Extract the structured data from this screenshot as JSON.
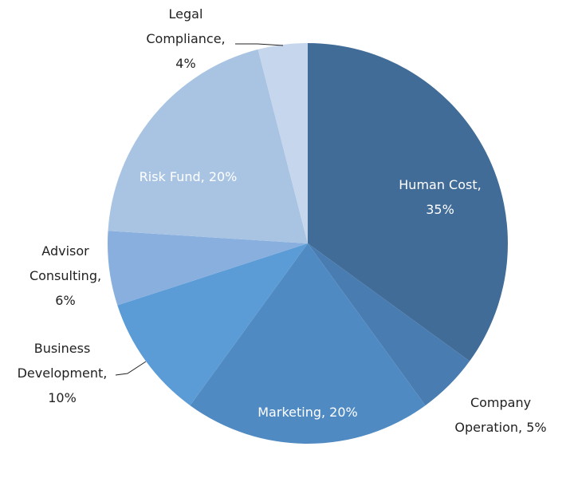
{
  "chart_data": {
    "type": "pie",
    "title": "",
    "start_angle": "12 o'clock",
    "direction": "clockwise",
    "slices": [
      {
        "label": "Human Cost",
        "value": 35,
        "value_label": "35%",
        "color": "#416c98"
      },
      {
        "label": "Company Operation",
        "value": 5,
        "value_label": "5%",
        "color": "#497db2"
      },
      {
        "label": "Marketing",
        "value": 20,
        "value_label": "20%",
        "color": "#508ac3"
      },
      {
        "label": "Business Development",
        "value": 10,
        "value_label": "10%",
        "color": "#5b9cd6"
      },
      {
        "label": "Advisor Consulting",
        "value": 6,
        "value_label": "6%",
        "color": "#88afdd"
      },
      {
        "label": "Risk Fund",
        "value": 20,
        "value_label": "20%",
        "color": "#a9c4e3"
      },
      {
        "label": "Legal Compliance",
        "value": 4,
        "value_label": "4%",
        "color": "#c6d6ec"
      }
    ],
    "data_label_lines": [
      [
        "Human Cost,",
        "35%"
      ],
      [
        "Company",
        "Operation, 5%"
      ],
      [
        "Marketing, 20%"
      ],
      [
        "Business",
        "Development,",
        "10%"
      ],
      [
        "Advisor",
        "Consulting,",
        "6%"
      ],
      [
        "Risk Fund, 20%"
      ],
      [
        "Legal",
        "Compliance,",
        "4%"
      ]
    ]
  }
}
